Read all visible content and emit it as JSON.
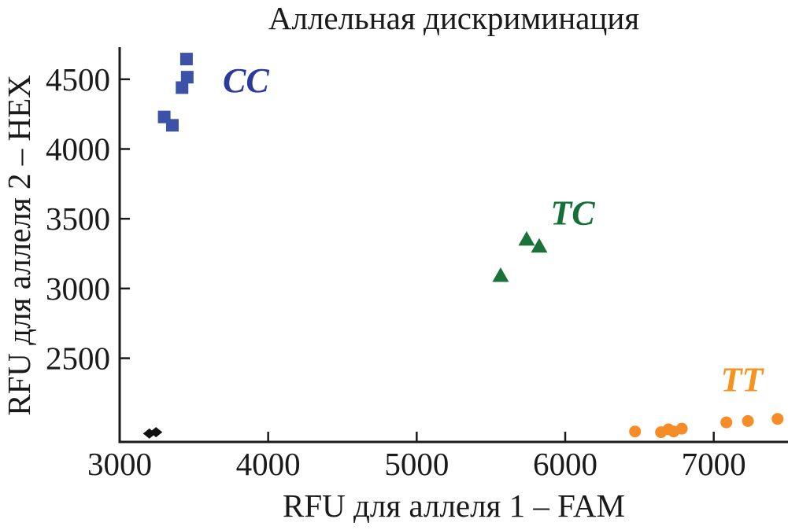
{
  "chart_data": {
    "type": "scatter",
    "title": "Аллельная дискриминация",
    "xlabel": "RFU для аллеля 1 – FAM",
    "ylabel": "RFU для аллеля 2 – HEX",
    "xlim": [
      3000,
      7500
    ],
    "ylim": [
      1900,
      4730
    ],
    "xticks": [
      3000,
      4000,
      5000,
      6000,
      7000
    ],
    "yticks": [
      2500,
      3000,
      3500,
      4000,
      4500
    ],
    "grid": false,
    "legend": false,
    "background": "#ffffff",
    "axis_color": "#1a1a1a",
    "series": [
      {
        "name": "CC",
        "label": "CC",
        "marker": "square",
        "color": "#3C52A9",
        "label_color": "#2B3B9B",
        "label_x": 3850,
        "label_y": 4490,
        "points": [
          [
            3450,
            4645
          ],
          [
            3455,
            4515
          ],
          [
            3420,
            4440
          ],
          [
            3300,
            4230
          ],
          [
            3355,
            4170
          ]
        ]
      },
      {
        "name": "TC",
        "label": "TC",
        "marker": "triangle",
        "color": "#1B7239",
        "label_color": "#156F38",
        "label_x": 6050,
        "label_y": 3540,
        "points": [
          [
            5740,
            3355
          ],
          [
            5825,
            3305
          ],
          [
            5565,
            3095
          ]
        ]
      },
      {
        "name": "TT",
        "label": "TT",
        "marker": "circle",
        "color": "#F68C28",
        "label_color": "#F6921E",
        "label_x": 7190,
        "label_y": 2345,
        "points": [
          [
            6470,
            1975
          ],
          [
            6645,
            1970
          ],
          [
            6695,
            1990
          ],
          [
            6730,
            1975
          ],
          [
            6785,
            1995
          ],
          [
            7085,
            2040
          ],
          [
            7230,
            2050
          ],
          [
            7430,
            2065
          ]
        ]
      },
      {
        "name": "unlabeled-black",
        "label": "",
        "marker": "diamond",
        "color": "#111111",
        "label_color": "#111111",
        "label_x": null,
        "label_y": null,
        "points": [
          [
            3200,
            1960
          ],
          [
            3245,
            1970
          ]
        ]
      }
    ]
  }
}
